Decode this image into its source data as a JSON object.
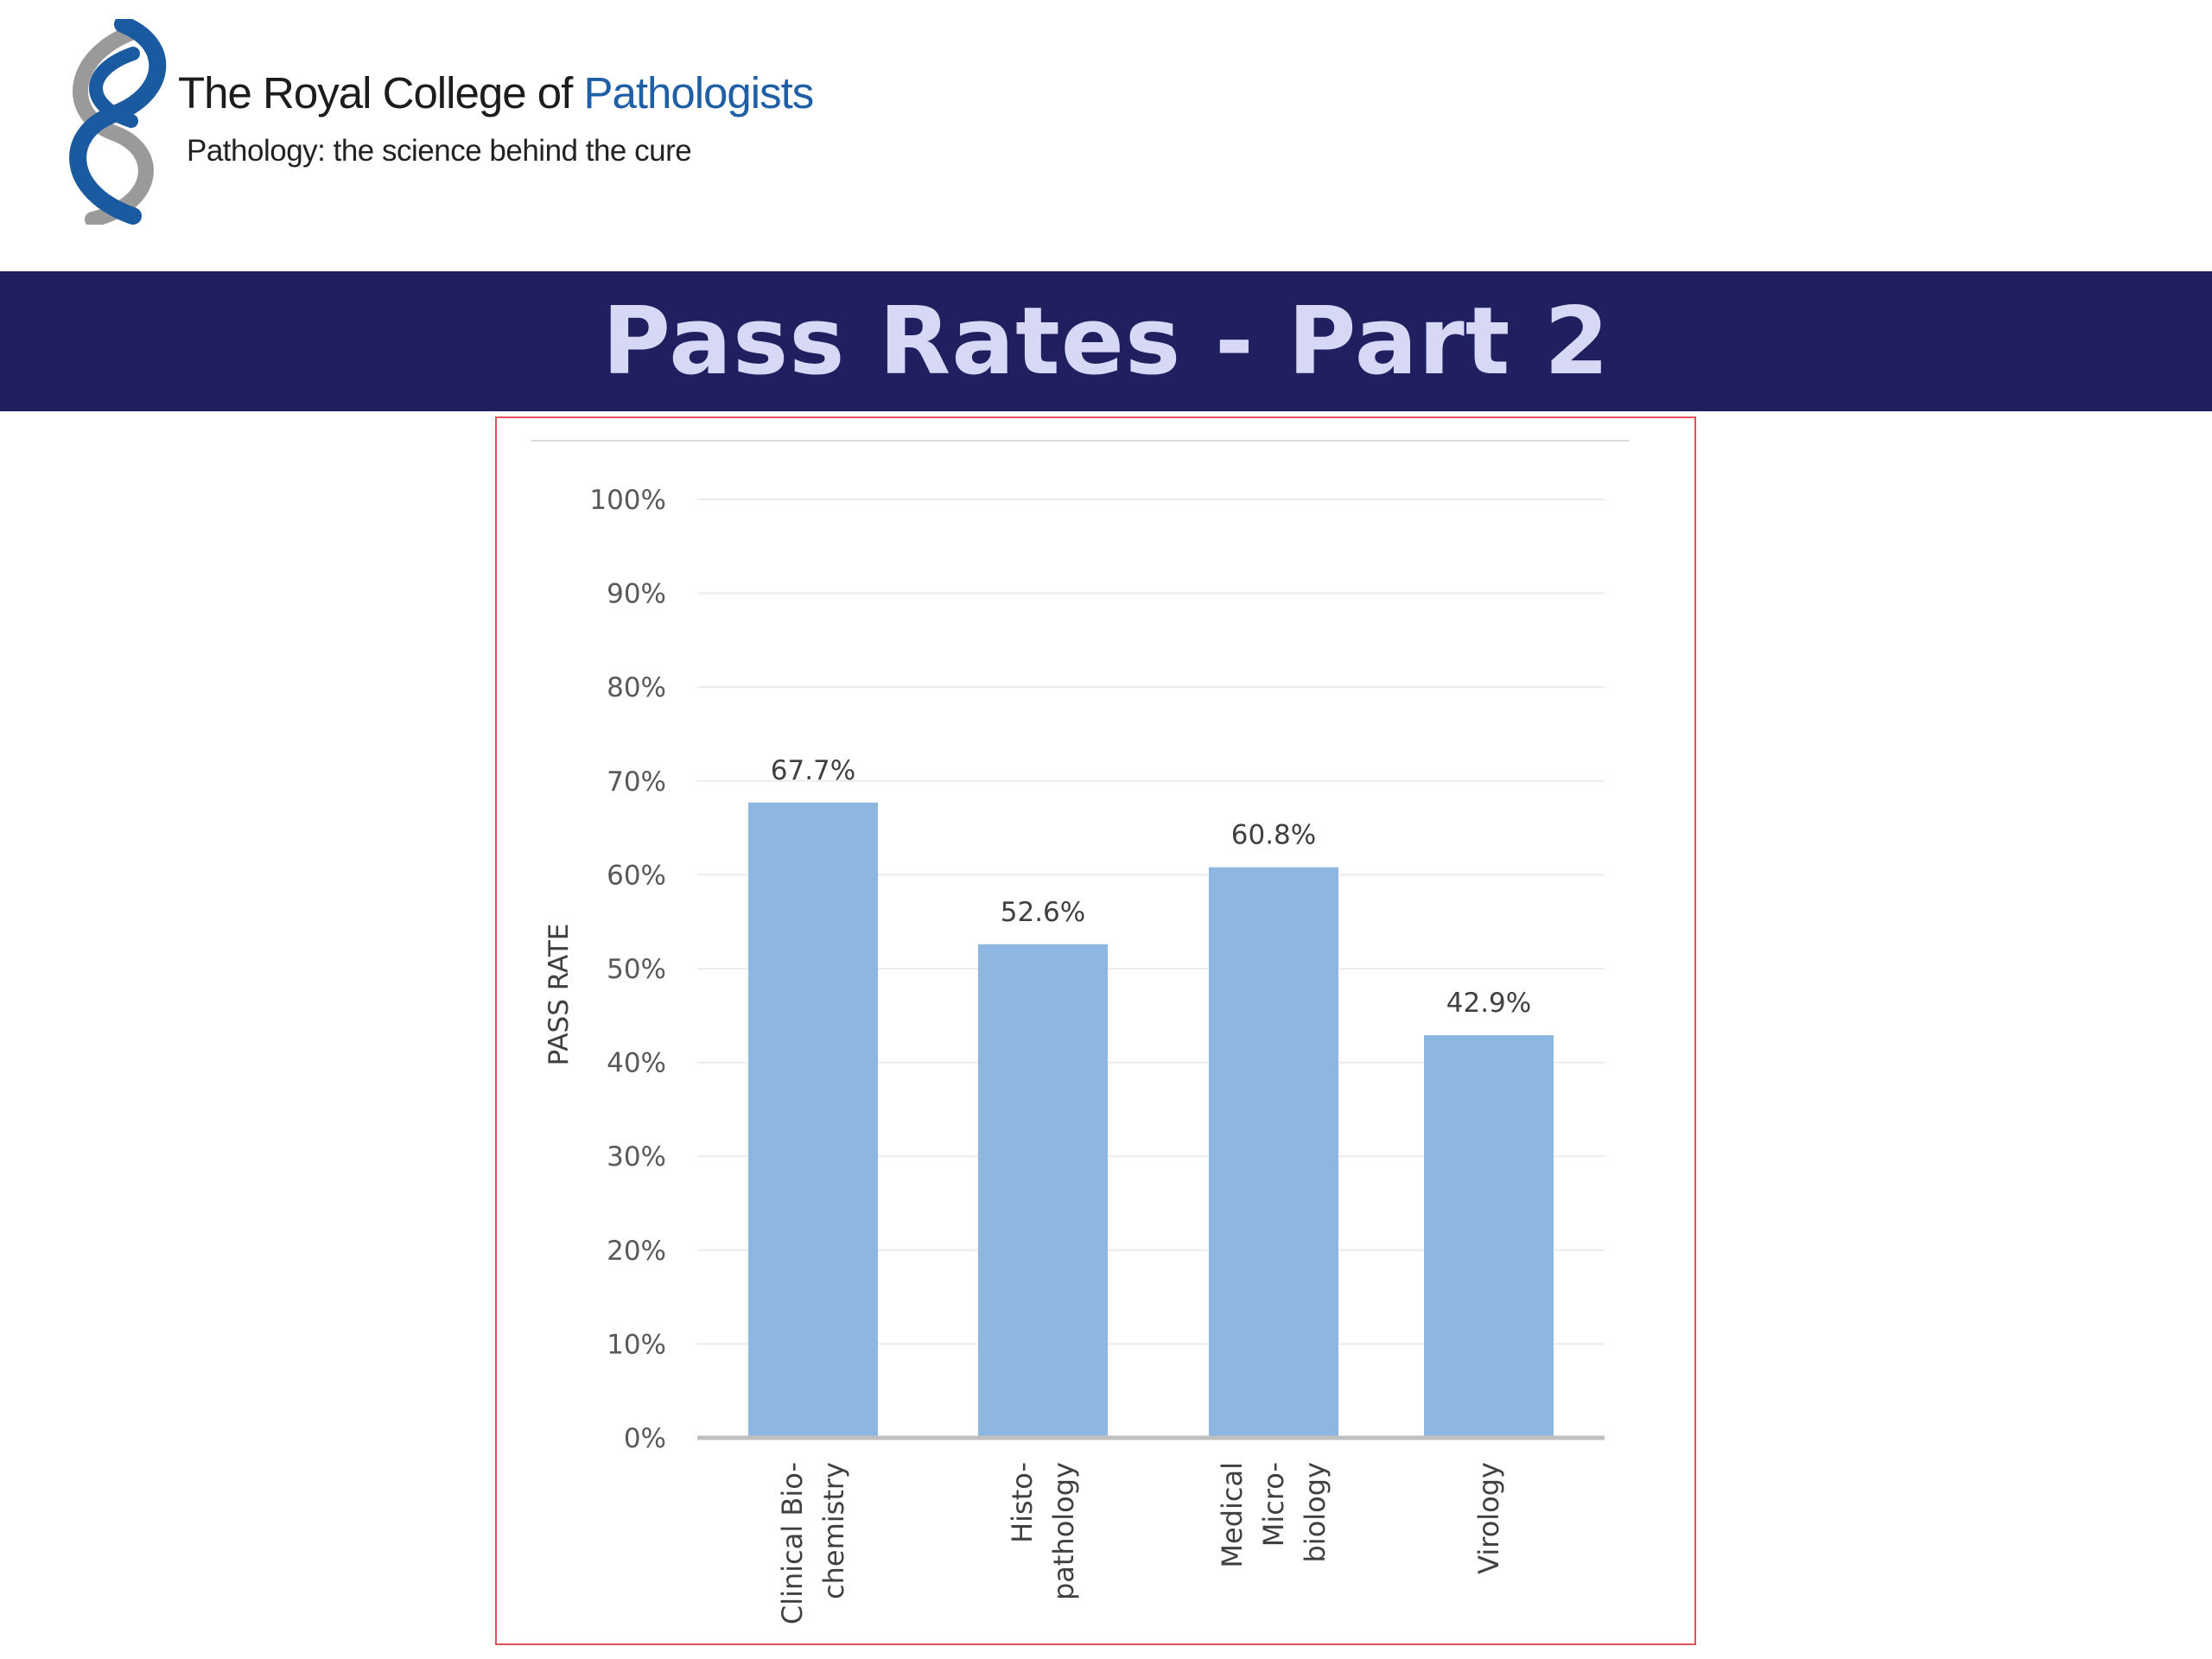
{
  "header": {
    "logo_name_prefix": "The Royal College of ",
    "logo_name_accent": "Pathologists",
    "logo_tagline": "Pathology: the science behind the cure",
    "logo_icon": "double-helix-section-icon"
  },
  "slide": {
    "title": "Pass Rates - Part 2"
  },
  "colors": {
    "brand_blue": "#1f5fa5",
    "band": "#202060",
    "title_text": "#d6d8f6",
    "bar": "#8db6e1",
    "frame": "#e05158"
  },
  "chart_data": {
    "type": "bar",
    "categories": [
      "Clinical Bio-chemistry",
      "Histo-pathology",
      "Medical Micro-biology",
      "Virology"
    ],
    "category_label_lines": [
      [
        "Clinical Bio-",
        "chemistry"
      ],
      [
        "Histo-",
        "pathology"
      ],
      [
        "Medical",
        "Micro-",
        "biology"
      ],
      [
        "Virology"
      ]
    ],
    "values": [
      67.7,
      52.6,
      60.8,
      42.9
    ],
    "data_labels": [
      "67.7%",
      "52.6%",
      "60.8%",
      "42.9%"
    ],
    "ylabel": "PASS RATE",
    "ylim": [
      0,
      100
    ],
    "yticks": [
      0,
      10,
      20,
      30,
      40,
      50,
      60,
      70,
      80,
      90,
      100
    ],
    "ytick_labels": [
      "0%",
      "10%",
      "20%",
      "30%",
      "40%",
      "50%",
      "60%",
      "70%",
      "80%",
      "90%",
      "100%"
    ],
    "grid": true,
    "legend": "none"
  }
}
